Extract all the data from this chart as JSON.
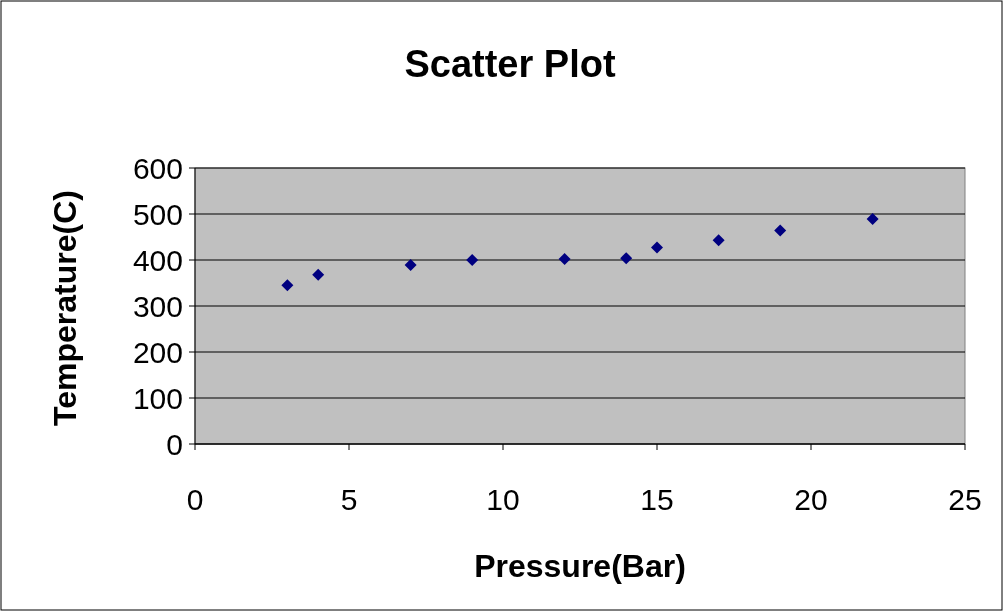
{
  "chart_data": {
    "type": "scatter",
    "title": "Scatter Plot",
    "xlabel": "Pressure(Bar)",
    "ylabel": "Temperature(C)",
    "x": [
      3,
      4,
      7,
      9,
      12,
      14,
      15,
      17,
      19,
      22
    ],
    "values": [
      345,
      368,
      389,
      400,
      402,
      404,
      427,
      443,
      464,
      489
    ],
    "color": "#000080",
    "marker": "diamond",
    "xlim": [
      0,
      25
    ],
    "xticks": [
      0,
      5,
      10,
      15,
      20,
      25
    ],
    "ylim": [
      0,
      600
    ],
    "yticks": [
      0,
      100,
      200,
      300,
      400,
      500,
      600
    ],
    "grid": "y"
  }
}
